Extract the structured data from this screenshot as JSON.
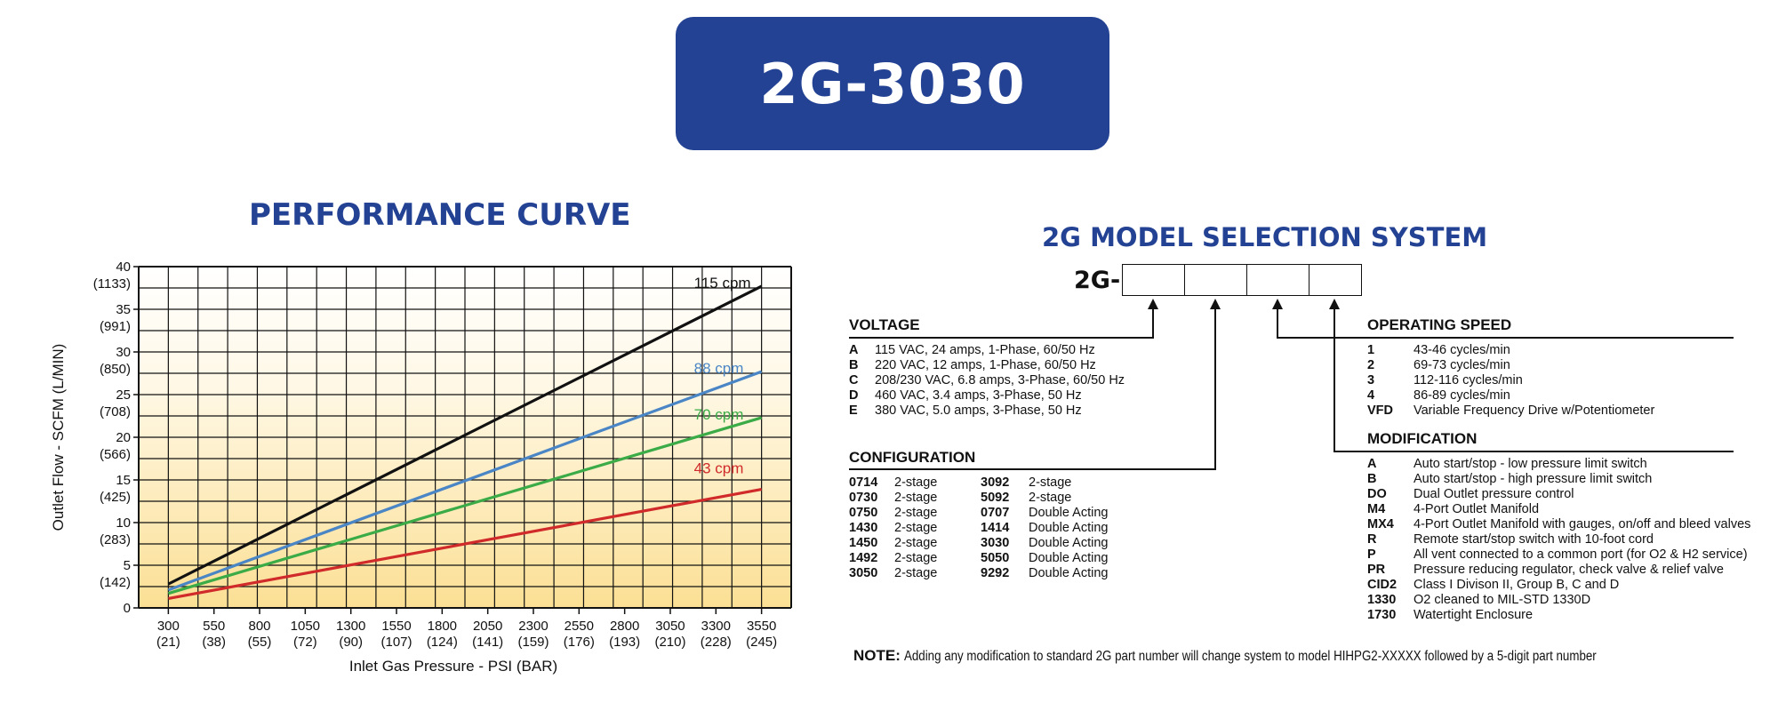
{
  "header": {
    "model": "2G-3030"
  },
  "performance": {
    "title": "PERFORMANCE CURVE"
  },
  "chart_data": {
    "type": "line",
    "title": "PERFORMANCE CURVE",
    "xlabel": "Inlet Gas Pressure - PSI (BAR)",
    "ylabel": "Outlet Flow - SCFM  (L/MIN)",
    "xlim": [
      300,
      3550
    ],
    "ylim": [
      0,
      40
    ],
    "grid": true,
    "x_ticks": [
      {
        "psi": "300",
        "bar": "(21)"
      },
      {
        "psi": "550",
        "bar": "(38)"
      },
      {
        "psi": "800",
        "bar": "(55)"
      },
      {
        "psi": "1050",
        "bar": "(72)"
      },
      {
        "psi": "1300",
        "bar": "(90)"
      },
      {
        "psi": "1550",
        "bar": "(107)"
      },
      {
        "psi": "1800",
        "bar": "(124)"
      },
      {
        "psi": "2050",
        "bar": "(141)"
      },
      {
        "psi": "2300",
        "bar": "(159)"
      },
      {
        "psi": "2550",
        "bar": "(176)"
      },
      {
        "psi": "2800",
        "bar": "(193)"
      },
      {
        "psi": "3050",
        "bar": "(210)"
      },
      {
        "psi": "3300",
        "bar": "(228)"
      },
      {
        "psi": "3550",
        "bar": "(245)"
      }
    ],
    "y_ticks": [
      {
        "value": 0,
        "label": "0",
        "sub": ""
      },
      {
        "value": 5,
        "label": "5",
        "sub": "(142)"
      },
      {
        "value": 10,
        "label": "10",
        "sub": "(283)"
      },
      {
        "value": 15,
        "label": "15",
        "sub": "(425)"
      },
      {
        "value": 20,
        "label": "20",
        "sub": "(566)"
      },
      {
        "value": 25,
        "label": "25",
        "sub": "(708)"
      },
      {
        "value": 30,
        "label": "30",
        "sub": "(850)"
      },
      {
        "value": 35,
        "label": "35",
        "sub": "(991)"
      },
      {
        "value": 40,
        "label": "40",
        "sub": "(1133)"
      }
    ],
    "series": [
      {
        "name": "115 cpm",
        "color": "#111111",
        "x": [
          300,
          3550
        ],
        "y": [
          2.8,
          37.7
        ],
        "label_x": 3180,
        "label_y": 37.7
      },
      {
        "name": "88 cpm",
        "color": "#4a86c5",
        "x": [
          300,
          3550
        ],
        "y": [
          2.1,
          27.7
        ],
        "label_x": 3180,
        "label_y": 27.7
      },
      {
        "name": "70 cpm",
        "color": "#3aab47",
        "x": [
          300,
          3550
        ],
        "y": [
          1.7,
          22.3
        ],
        "label_x": 3180,
        "label_y": 22.3
      },
      {
        "name": "43 cpm",
        "color": "#d02a2a",
        "x": [
          300,
          3550
        ],
        "y": [
          1.1,
          13.9
        ],
        "label_x": 3180,
        "label_y": 16.0
      }
    ]
  },
  "selection": {
    "title": "2G MODEL SELECTION SYSTEM",
    "prefix": "2G-",
    "voltage": {
      "heading": "VOLTAGE",
      "items": [
        {
          "code": "A",
          "desc": "115 VAC, 24 amps, 1-Phase, 60/50 Hz"
        },
        {
          "code": "B",
          "desc": "220 VAC,  12 amps, 1-Phase, 60/50 Hz"
        },
        {
          "code": "C",
          "desc": "208/230 VAC,  6.8 amps, 3-Phase, 60/50 Hz"
        },
        {
          "code": "D",
          "desc": "460 VAC,  3.4 amps, 3-Phase, 50 Hz"
        },
        {
          "code": "E",
          "desc": "380 VAC, 5.0 amps, 3-Phase, 50 Hz"
        }
      ]
    },
    "configuration": {
      "heading": "CONFIGURATION",
      "items": [
        {
          "code": "0714",
          "desc": "2-stage",
          "code2": "3092",
          "desc2": "2-stage"
        },
        {
          "code": "0730",
          "desc": "2-stage",
          "code2": "5092",
          "desc2": "2-stage"
        },
        {
          "code": "0750",
          "desc": "2-stage",
          "code2": "0707",
          "desc2": "Double Acting"
        },
        {
          "code": "1430",
          "desc": "2-stage",
          "code2": "1414",
          "desc2": "Double Acting"
        },
        {
          "code": "1450",
          "desc": "2-stage",
          "code2": "3030",
          "desc2": "Double Acting"
        },
        {
          "code": "1492",
          "desc": "2-stage",
          "code2": "5050",
          "desc2": "Double Acting"
        },
        {
          "code": "3050",
          "desc": "2-stage",
          "code2": "9292",
          "desc2": "Double Acting"
        }
      ]
    },
    "speed": {
      "heading": "OPERATING SPEED",
      "items": [
        {
          "code": "1",
          "desc": "43-46 cycles/min"
        },
        {
          "code": "2",
          "desc": "69-73 cycles/min"
        },
        {
          "code": "3",
          "desc": "112-116 cycles/min"
        },
        {
          "code": "4",
          "desc": "86-89 cycles/min"
        },
        {
          "code": "VFD",
          "desc": "Variable Frequency Drive w/Potentiometer"
        }
      ]
    },
    "modification": {
      "heading": "MODIFICATION",
      "items": [
        {
          "code": "A",
          "desc": "Auto start/stop - low pressure limit switch"
        },
        {
          "code": "B",
          "desc": "Auto start/stop - high pressure limit switch"
        },
        {
          "code": "DO",
          "desc": "Dual Outlet pressure control"
        },
        {
          "code": "M4",
          "desc": "4-Port Outlet Manifold"
        },
        {
          "code": "MX4",
          "desc": "4-Port Outlet Manifold with gauges, on/off and bleed valves"
        },
        {
          "code": "R",
          "desc": "Remote start/stop switch with 10-foot cord"
        },
        {
          "code": "P",
          "desc": "All vent connected to a common port (for O2 & H2 service)"
        },
        {
          "code": "PR",
          "desc": "Pressure reducing regulator, check valve & relief valve"
        },
        {
          "code": "CID2",
          "desc": "Class I Divison II, Group B, C and D"
        },
        {
          "code": "1330",
          "desc": "O2 cleaned to MIL-STD 1330D"
        },
        {
          "code": "1730",
          "desc": "Watertight Enclosure"
        }
      ]
    },
    "note": {
      "label": "NOTE:",
      "text": "Adding any modification to standard 2G part number will change system to model HIHPG2-XXXXX followed by a 5-digit part number"
    }
  }
}
